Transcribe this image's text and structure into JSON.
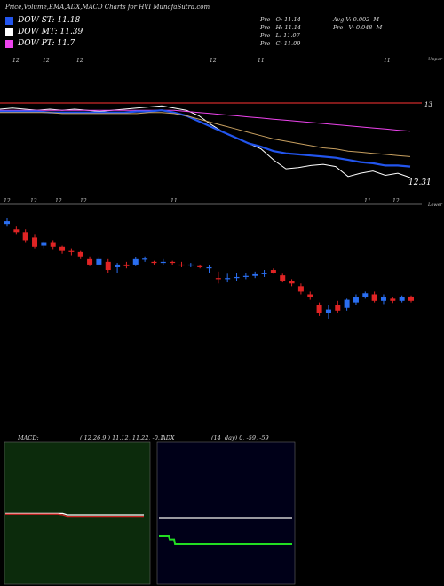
{
  "header": {
    "title": "Price,Volume,EMA,ADX,MACD Charts for HVI MunafaSutra.com",
    "dow_st": "DOW ST: 11.18",
    "dow_mt": "DOW MT: 11.39",
    "dow_pt": "DOW PT: 11.7",
    "dow_st_color": "#2255ee",
    "dow_mt_color": "#ffffff",
    "dow_pt_color": "#ee44ee",
    "prev_open": "Pre   O: 11.14",
    "prev_high": "Pre   H: 11.14",
    "prev_low": "Pre   L: 11.07",
    "prev_close": "Pre   C: 11.09",
    "avg_vol": "Avg V: 0.002  M",
    "prev_vol": "Pre   V: 0.048  M"
  },
  "ema_panel": {
    "top_axis_label": "Upper",
    "bottom_axis_label": "Lower",
    "right_top_value": "13",
    "right_bottom_value": "12.31",
    "top_ticks": [
      "12",
      "12",
      "12",
      "12",
      "11",
      "11"
    ],
    "bottom_ticks": [
      "12",
      "12",
      "12",
      "12",
      "11",
      "11",
      "12"
    ]
  },
  "macd": {
    "label": "MACD:",
    "params": "( 12,26,9 ) 11.12, 11.22, -0.1"
  },
  "adx": {
    "label": "ADX",
    "params": "(14  day) 0, -59, -59"
  },
  "chart_data": [
    {
      "type": "line",
      "name": "ema-panel",
      "series": [
        {
          "color": "#ffffff",
          "values": [
            12.96,
            12.97,
            12.96,
            12.95,
            12.96,
            12.95,
            12.96,
            12.95,
            12.94,
            12.95,
            12.96,
            12.97,
            12.98,
            12.99,
            12.97,
            12.95,
            12.9,
            12.82,
            12.75,
            12.7,
            12.65,
            12.6,
            12.5,
            12.42,
            12.43,
            12.45,
            12.46,
            12.44,
            12.35,
            12.38,
            12.4,
            12.36,
            12.38,
            12.34
          ]
        },
        {
          "color": "#ee44ee",
          "values": [
            12.95,
            12.95,
            12.95,
            12.95,
            12.95,
            12.95,
            12.95,
            12.95,
            12.95,
            12.95,
            12.95,
            12.95,
            12.95,
            12.95,
            12.95,
            12.94,
            12.93,
            12.92,
            12.91,
            12.9,
            12.89,
            12.88,
            12.87,
            12.86,
            12.85,
            12.84,
            12.83,
            12.82,
            12.81,
            12.8,
            12.79,
            12.78,
            12.77,
            12.76
          ]
        },
        {
          "color": "#2255ee",
          "values": [
            12.94,
            12.94,
            12.94,
            12.94,
            12.93,
            12.93,
            12.93,
            12.93,
            12.93,
            12.93,
            12.93,
            12.94,
            12.94,
            12.95,
            12.93,
            12.9,
            12.85,
            12.8,
            12.75,
            12.7,
            12.65,
            12.62,
            12.58,
            12.56,
            12.55,
            12.54,
            12.53,
            12.52,
            12.5,
            12.48,
            12.47,
            12.45,
            12.45,
            12.44
          ]
        },
        {
          "color": "#c8a060",
          "values": [
            12.93,
            12.93,
            12.93,
            12.93,
            12.93,
            12.92,
            12.92,
            12.92,
            12.92,
            12.92,
            12.92,
            12.92,
            12.93,
            12.93,
            12.92,
            12.9,
            12.87,
            12.84,
            12.81,
            12.78,
            12.75,
            12.72,
            12.69,
            12.67,
            12.65,
            12.63,
            12.61,
            12.6,
            12.58,
            12.57,
            12.56,
            12.55,
            12.54,
            12.53
          ]
        }
      ]
    },
    {
      "type": "candlestick",
      "name": "price-panel",
      "candles": [
        {
          "o": 13.2,
          "c": 13.25,
          "h": 13.3,
          "l": 13.15
        },
        {
          "o": 13.1,
          "c": 13.05,
          "h": 13.15,
          "l": 13.0
        },
        {
          "o": 13.05,
          "c": 12.9,
          "h": 13.1,
          "l": 12.85
        },
        {
          "o": 12.95,
          "c": 12.78,
          "h": 13.0,
          "l": 12.75
        },
        {
          "o": 12.8,
          "c": 12.85,
          "h": 12.88,
          "l": 12.75
        },
        {
          "o": 12.85,
          "c": 12.78,
          "h": 12.9,
          "l": 12.72
        },
        {
          "o": 12.78,
          "c": 12.7,
          "h": 12.8,
          "l": 12.65
        },
        {
          "o": 12.7,
          "c": 12.68,
          "h": 12.75,
          "l": 12.62
        },
        {
          "o": 12.68,
          "c": 12.6,
          "h": 12.7,
          "l": 12.55
        },
        {
          "o": 12.55,
          "c": 12.45,
          "h": 12.6,
          "l": 12.42
        },
        {
          "o": 12.45,
          "c": 12.55,
          "h": 12.6,
          "l": 12.45
        },
        {
          "o": 12.5,
          "c": 12.35,
          "h": 12.55,
          "l": 12.3
        },
        {
          "o": 12.4,
          "c": 12.45,
          "h": 12.48,
          "l": 12.3
        },
        {
          "o": 12.45,
          "c": 12.42,
          "h": 12.5,
          "l": 12.38
        },
        {
          "o": 12.45,
          "c": 12.55,
          "h": 12.58,
          "l": 12.42
        },
        {
          "o": 12.55,
          "c": 12.56,
          "h": 12.6,
          "l": 12.5
        },
        {
          "o": 12.5,
          "c": 12.48,
          "h": 12.52,
          "l": 12.45
        },
        {
          "o": 12.48,
          "c": 12.5,
          "h": 12.55,
          "l": 12.45
        },
        {
          "o": 12.5,
          "c": 12.48,
          "h": 12.52,
          "l": 12.44
        },
        {
          "o": 12.45,
          "c": 12.44,
          "h": 12.5,
          "l": 12.4
        },
        {
          "o": 12.44,
          "c": 12.45,
          "h": 12.48,
          "l": 12.4
        },
        {
          "o": 12.42,
          "c": 12.41,
          "h": 12.45,
          "l": 12.38
        },
        {
          "o": 12.4,
          "c": 12.4,
          "h": 12.44,
          "l": 12.3
        },
        {
          "o": 12.2,
          "c": 12.18,
          "h": 12.32,
          "l": 12.1
        },
        {
          "o": 12.18,
          "c": 12.2,
          "h": 12.28,
          "l": 12.12
        },
        {
          "o": 12.2,
          "c": 12.22,
          "h": 12.3,
          "l": 12.15
        },
        {
          "o": 12.22,
          "c": 12.24,
          "h": 12.3,
          "l": 12.18
        },
        {
          "o": 12.24,
          "c": 12.27,
          "h": 12.32,
          "l": 12.2
        },
        {
          "o": 12.27,
          "c": 12.29,
          "h": 12.35,
          "l": 12.22
        },
        {
          "o": 12.35,
          "c": 12.3,
          "h": 12.38,
          "l": 12.28
        },
        {
          "o": 12.25,
          "c": 12.15,
          "h": 12.28,
          "l": 12.12
        },
        {
          "o": 12.15,
          "c": 12.1,
          "h": 12.18,
          "l": 12.05
        },
        {
          "o": 12.05,
          "c": 11.95,
          "h": 12.1,
          "l": 11.9
        },
        {
          "o": 11.9,
          "c": 11.85,
          "h": 11.95,
          "l": 11.8
        },
        {
          "o": 11.7,
          "c": 11.55,
          "h": 11.75,
          "l": 11.5
        },
        {
          "o": 11.55,
          "c": 11.62,
          "h": 11.7,
          "l": 11.45
        },
        {
          "o": 11.7,
          "c": 11.6,
          "h": 11.78,
          "l": 11.55
        },
        {
          "o": 11.65,
          "c": 11.8,
          "h": 11.82,
          "l": 11.6
        },
        {
          "o": 11.75,
          "c": 11.85,
          "h": 11.9,
          "l": 11.7
        },
        {
          "o": 11.85,
          "c": 11.92,
          "h": 11.95,
          "l": 11.82
        },
        {
          "o": 11.9,
          "c": 11.78,
          "h": 11.95,
          "l": 11.75
        },
        {
          "o": 11.78,
          "c": 11.85,
          "h": 11.9,
          "l": 11.72
        },
        {
          "o": 11.82,
          "c": 11.78,
          "h": 11.85,
          "l": 11.74
        },
        {
          "o": 11.78,
          "c": 11.85,
          "h": 11.88,
          "l": 11.75
        },
        {
          "o": 11.86,
          "c": 11.78,
          "h": 11.88,
          "l": 11.75
        }
      ]
    },
    {
      "type": "line",
      "name": "macd-panel",
      "series": [
        {
          "color": "#ffffff",
          "values": [
            0.02,
            0.02,
            0.02,
            0.02,
            0.02,
            0.02,
            0.02,
            0.02,
            0.02,
            0.02,
            0.02,
            0.02,
            0.02,
            0.0,
            0.0,
            0.0,
            0.0,
            0.0,
            0.0,
            0.0,
            0.0,
            0.0,
            0.0,
            0.0,
            0.0,
            0.0,
            0.0,
            0.0,
            0.0,
            0.0
          ]
        },
        {
          "color": "#cc2222",
          "values": [
            0.01,
            0.01,
            0.01,
            0.01,
            0.01,
            0.01,
            0.01,
            0.01,
            0.01,
            0.01,
            0.01,
            0.01,
            0.0,
            -0.02,
            -0.02,
            -0.02,
            -0.02,
            -0.02,
            -0.02,
            -0.02,
            -0.02,
            -0.02,
            -0.02,
            -0.02,
            -0.02,
            -0.02,
            -0.02,
            -0.02,
            -0.02,
            -0.02
          ]
        }
      ]
    },
    {
      "type": "line",
      "name": "adx-panel",
      "series": [
        {
          "color": "#cccccc",
          "values": [
            30,
            30,
            30,
            30,
            30,
            30,
            30,
            30,
            30,
            30,
            30,
            30,
            30,
            30,
            30,
            30,
            30,
            30,
            30,
            30,
            30,
            30,
            30,
            30,
            30,
            30,
            30,
            30,
            30,
            30,
            30,
            30,
            30,
            30,
            30,
            30,
            30,
            30,
            30,
            30,
            30,
            30,
            30,
            30,
            30,
            30,
            30,
            30,
            30,
            30,
            30,
            30,
            30,
            30,
            30,
            30,
            30,
            30,
            30,
            30,
            30,
            30,
            30,
            30,
            30,
            30,
            30,
            30,
            30,
            30,
            30,
            30,
            30,
            30,
            30,
            30,
            30,
            30,
            30,
            30,
            30,
            30,
            30,
            30,
            30,
            30,
            30,
            30,
            30,
            30,
            30,
            30,
            30,
            30,
            30,
            30,
            30,
            30,
            30,
            30,
            30,
            30,
            30,
            30,
            30,
            30,
            30,
            30,
            30,
            30,
            30,
            30,
            30,
            30,
            30,
            30,
            30,
            30,
            30,
            30,
            30,
            30,
            30,
            30,
            30,
            30,
            30,
            30,
            30,
            30,
            30,
            30,
            30,
            30,
            30,
            30,
            30,
            30,
            30,
            30,
            30,
            30,
            30,
            30,
            30,
            30,
            30,
            30,
            30,
            30
          ]
        },
        {
          "color": "#22dd22",
          "values": [
            0,
            0,
            0,
            0,
            0,
            0,
            0,
            0,
            0,
            0,
            0,
            0,
            -4,
            -4,
            -4,
            -4,
            -4,
            -4,
            -10,
            -10,
            -10,
            -10,
            -10,
            -10,
            -10,
            -10,
            -10,
            -10,
            -10,
            -10,
            -10,
            -10,
            -10,
            -10,
            -10,
            -10,
            -10,
            -10,
            -10,
            -10,
            -10,
            -10,
            -10,
            -10,
            -10,
            -10,
            -10,
            -10,
            -10,
            -10,
            -10,
            -10,
            -10,
            -10,
            -10,
            -10,
            -10,
            -10,
            -10,
            -10,
            -10,
            -10,
            -10,
            -10,
            -10,
            -10,
            -10,
            -10,
            -10,
            -10,
            -10,
            -10,
            -10,
            -10,
            -10,
            -10,
            -10,
            -10,
            -10,
            -10,
            -10,
            -10,
            -10,
            -10,
            -10,
            -10,
            -10,
            -10,
            -10,
            -10,
            -10,
            -10,
            -10,
            -10,
            -10,
            -10,
            -10,
            -10,
            -10,
            -10,
            -10,
            -10,
            -10,
            -10,
            -10,
            -10,
            -10,
            -10,
            -10,
            -10,
            -10,
            -10,
            -10,
            -10,
            -10,
            -10,
            -10,
            -10,
            -10,
            -10,
            -10,
            -10,
            -10,
            -10,
            -10,
            -10,
            -10,
            -10,
            -10,
            -10,
            -10,
            -10,
            -10,
            -10,
            -10,
            -10,
            -10,
            -10,
            -10,
            -10,
            -10,
            -10,
            -10,
            -10,
            -10,
            -10,
            -10,
            -10,
            -10,
            -10
          ]
        }
      ]
    }
  ]
}
